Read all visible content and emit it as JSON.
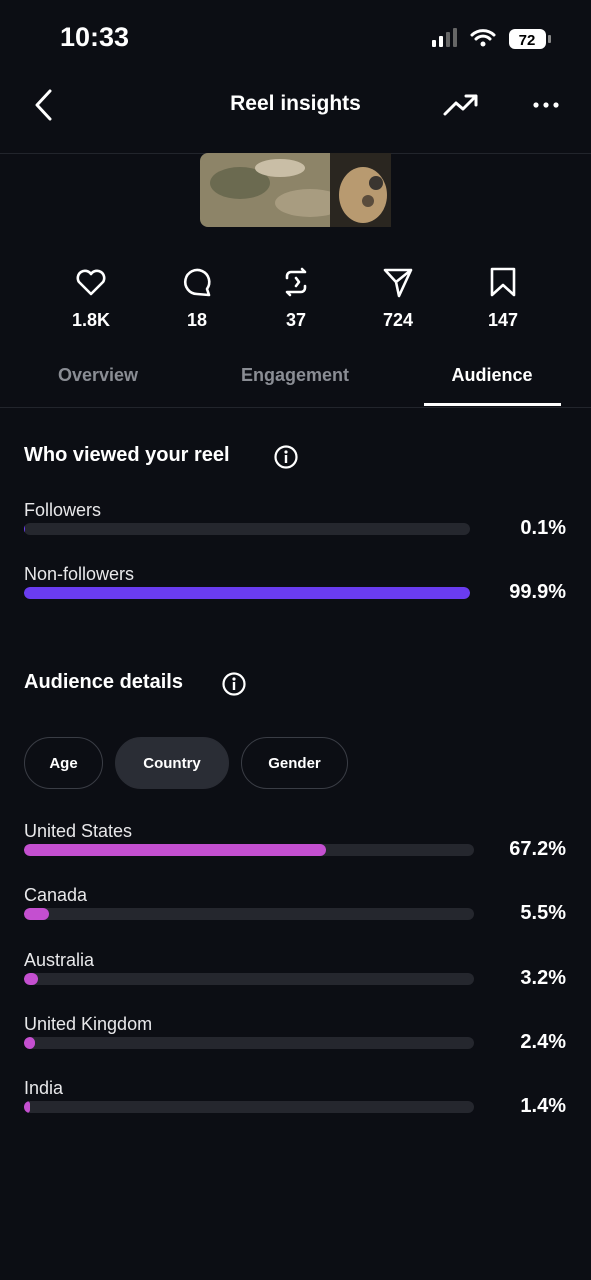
{
  "status_bar": {
    "time": "10:33",
    "battery": "72"
  },
  "header": {
    "title": "Reel insights"
  },
  "stats": [
    "1.8K",
    "18",
    "37",
    "724",
    "147"
  ],
  "tabs": [
    "Overview",
    "Engagement",
    "Audience"
  ],
  "viewers": {
    "title": "Who viewed your reel",
    "color": "#6a3cf0",
    "rows": [
      {
        "label": "Followers",
        "value": 0.1,
        "value_label": "0.1%"
      },
      {
        "label": "Non-followers",
        "value": 99.9,
        "value_label": "99.9%"
      }
    ]
  },
  "audience_details": {
    "title": "Audience details",
    "color": "#c44fd0",
    "filters": [
      "Age",
      "Country",
      "Gender"
    ],
    "rows": [
      {
        "label": "United States",
        "value": 67.2,
        "value_label": "67.2%"
      },
      {
        "label": "Canada",
        "value": 5.5,
        "value_label": "5.5%"
      },
      {
        "label": "Australia",
        "value": 3.2,
        "value_label": "3.2%"
      },
      {
        "label": "United Kingdom",
        "value": 2.4,
        "value_label": "2.4%"
      },
      {
        "label": "India",
        "value": 1.4,
        "value_label": "1.4%"
      }
    ]
  }
}
